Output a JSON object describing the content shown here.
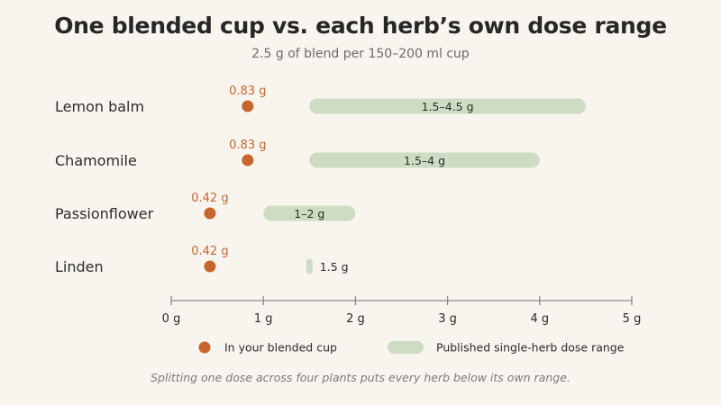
{
  "header": {
    "title": "One blended cup vs. each herb’s own dose range",
    "subtitle": "2.5 g of blend per 150–200 ml cup"
  },
  "footnote": "Splitting one dose across four plants puts every herb below its own range.",
  "colors": {
    "dot": "#c8652f",
    "range": "#cddcc3",
    "axis": "#8a8a8a",
    "background": "#f8f5ef"
  },
  "chart_data": {
    "type": "range-dot",
    "categories": [
      "Lemon balm",
      "Chamomile",
      "Passionflower",
      "Linden"
    ],
    "series": [
      {
        "name": "In your blended cup",
        "values": [
          0.83,
          0.83,
          0.42,
          0.42
        ],
        "labels": [
          "0.83 g",
          "0.83 g",
          "0.42 g",
          "0.42 g"
        ]
      },
      {
        "name": "Published single-herb dose range",
        "ranges": [
          [
            1.5,
            4.5
          ],
          [
            1.5,
            4
          ],
          [
            1,
            2
          ],
          [
            1.5,
            1.5
          ]
        ],
        "labels": [
          "1.5–4.5 g",
          "1.5–4 g",
          "1–2 g",
          "1.5 g"
        ]
      }
    ],
    "xlim": [
      0,
      5
    ],
    "xticks": [
      0,
      1,
      2,
      3,
      4,
      5
    ],
    "xtick_labels": [
      "0 g",
      "1 g",
      "2 g",
      "3 g",
      "4 g",
      "5 g"
    ],
    "grid": false,
    "legend_position": "bottom"
  }
}
